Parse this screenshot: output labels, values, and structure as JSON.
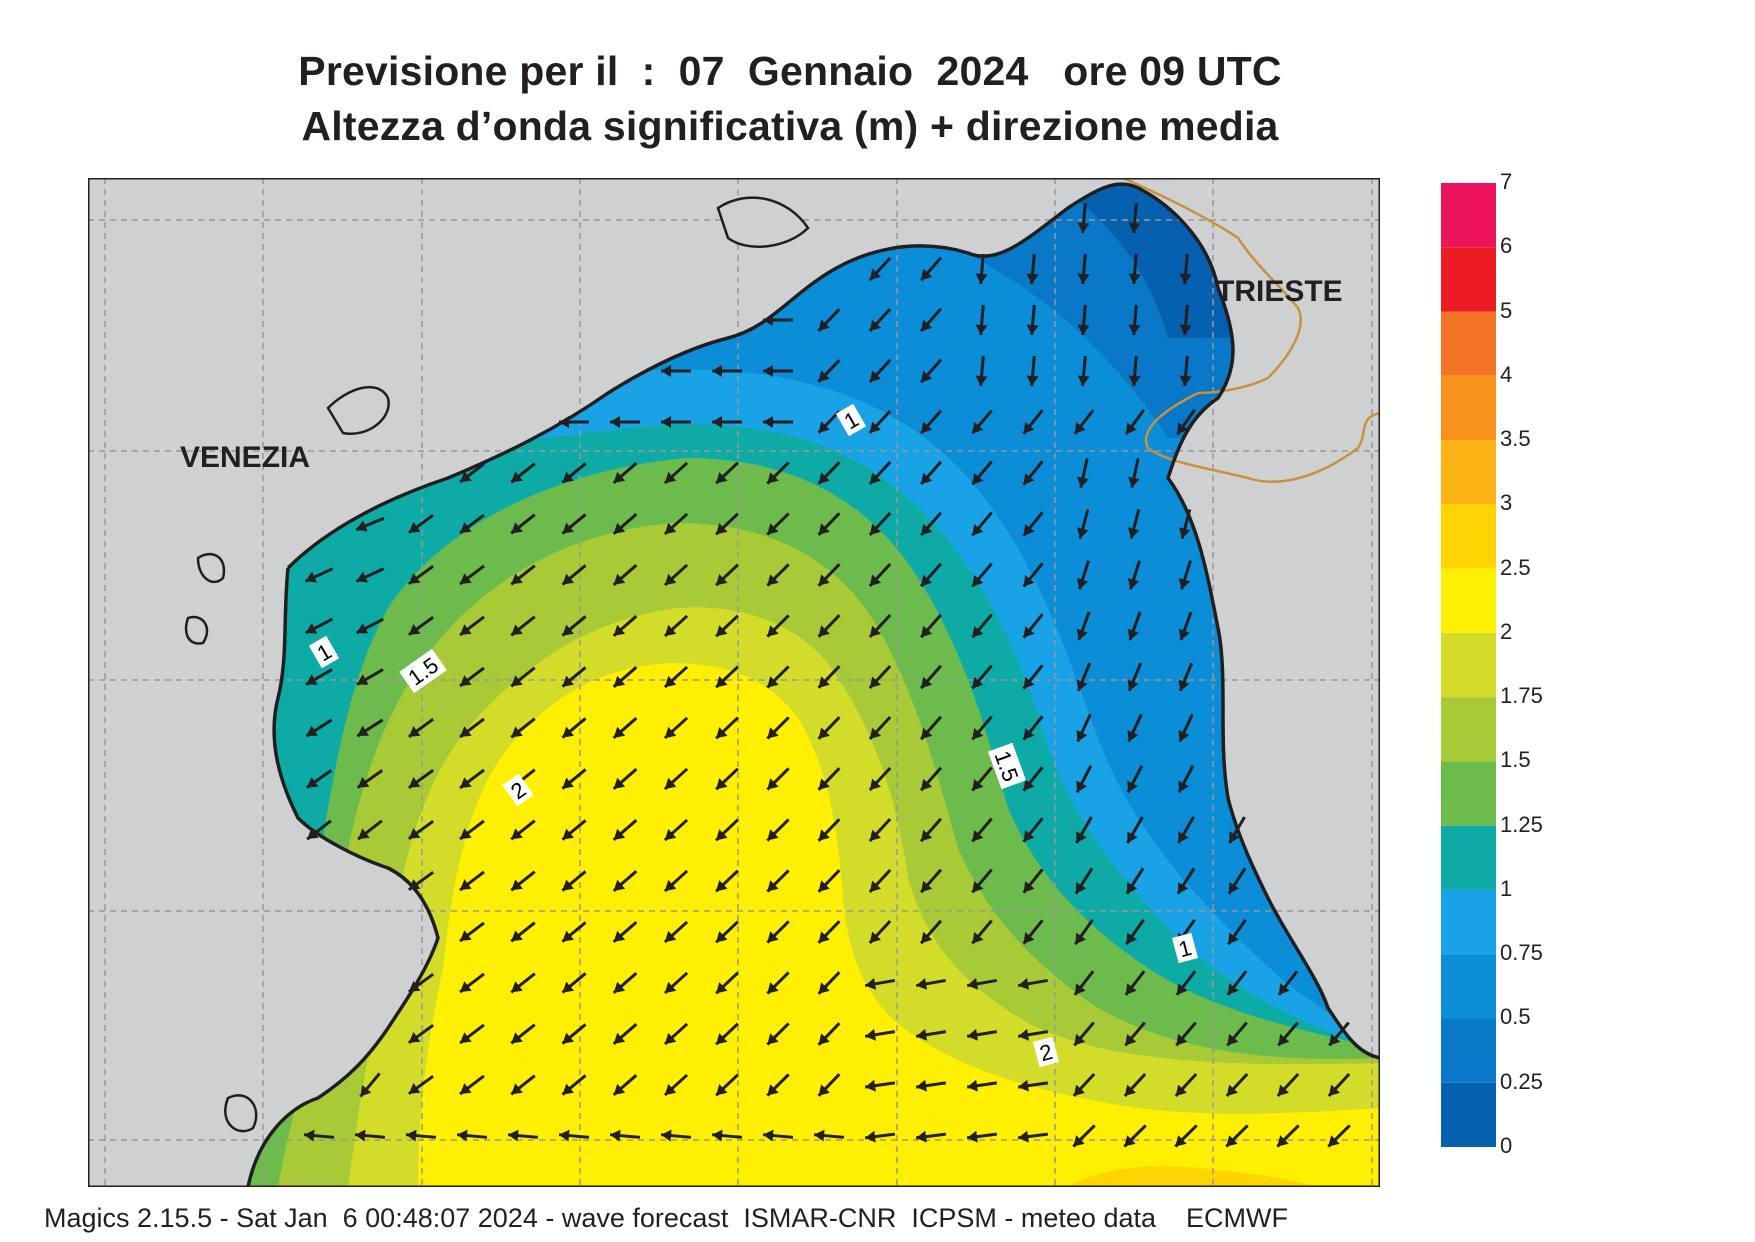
{
  "title": {
    "line1": "Previsione per il  :  07  Gennaio  2024   ore 09 UTC",
    "line2": "Altezza d’onda significativa (m) + direzione media"
  },
  "map": {
    "cities": [
      "VENEZIA",
      "TRIESTE"
    ],
    "contour_labels": [
      "1",
      "1",
      "1",
      "1.5",
      "1.5",
      "2",
      "2"
    ],
    "colors": {
      "land": "#cfd0d2",
      "grid": "#9b9792",
      "coast": "#1f1f1f",
      "border": "#c8923a",
      "arrow": "#231f20"
    }
  },
  "legend": {
    "levels": [
      "0",
      "0.25",
      "0.5",
      "0.75",
      "1",
      "1.25",
      "1.5",
      "1.75",
      "2",
      "2.5",
      "3",
      "3.5",
      "4",
      "5",
      "6",
      "7"
    ],
    "colors": [
      "#0660b0",
      "#0a78c8",
      "#0b8dd8",
      "#1aa2e6",
      "#0eaba6",
      "#6cbb4c",
      "#a8ca37",
      "#d3dd29",
      "#ffef00",
      "#ffd400",
      "#fcb316",
      "#f7931d",
      "#f47425",
      "#ed1c24",
      "#ee145b"
    ]
  },
  "footer": "Magics 2.15.5 - Sat Jan  6 00:48:07 2024 - wave forecast  ISMAR-CNR  ICPSM - meteo data    ECMWF"
}
